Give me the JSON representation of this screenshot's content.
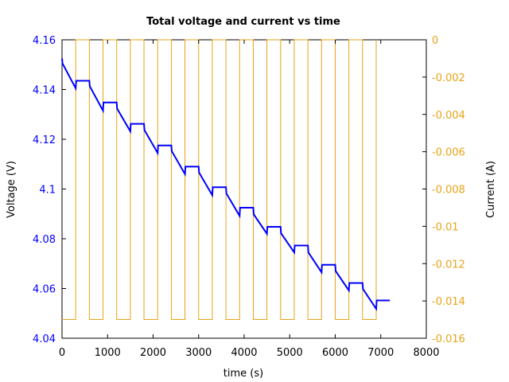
{
  "chart_data": {
    "type": "line",
    "title": "Total voltage and current vs time",
    "xlabel": "time (s)",
    "ylabel": "Voltage (V)",
    "y2label": "Current (A)",
    "xlim": [
      0,
      8000
    ],
    "ylim": [
      4.04,
      4.16
    ],
    "y2lim": [
      -0.016,
      0
    ],
    "x_ticks": [
      "0",
      "1000",
      "2000",
      "3000",
      "4000",
      "5000",
      "6000",
      "7000",
      "8000"
    ],
    "y_ticks": [
      "4.04",
      "4.06",
      "4.08",
      "4.1",
      "4.12",
      "4.14",
      "4.16"
    ],
    "y2_ticks": [
      "-0.016",
      "-0.014",
      "-0.012",
      "-0.01",
      "-0.008",
      "-0.006",
      "-0.004",
      "-0.002",
      "0"
    ],
    "grid": false,
    "series": [
      {
        "axis": "left",
        "color": "#0000ff",
        "x": [
          0,
          10,
          300,
          310,
          600,
          610,
          900,
          910,
          1200,
          1210,
          1500,
          1510,
          1800,
          1810,
          2100,
          2110,
          2400,
          2410,
          2700,
          2710,
          3000,
          3010,
          3300,
          3310,
          3600,
          3610,
          3900,
          3910,
          4200,
          4210,
          4500,
          4510,
          4800,
          4810,
          5100,
          5110,
          5400,
          5410,
          5700,
          5710,
          6000,
          6010,
          6300,
          6310,
          6600,
          6610,
          6900,
          6910,
          7200
        ],
        "y": [
          4.1525,
          4.1505,
          4.1405,
          4.1435,
          4.1435,
          4.1413,
          4.1315,
          4.1348,
          4.1348,
          4.1323,
          4.1232,
          4.1262,
          4.1262,
          4.1237,
          4.1145,
          4.1175,
          4.1175,
          4.1152,
          4.106,
          4.109,
          4.109,
          4.1066,
          4.0975,
          4.1007,
          4.1007,
          4.0982,
          4.0892,
          4.0925,
          4.0925,
          4.0898,
          4.082,
          4.0848,
          4.0848,
          4.0822,
          4.0745,
          4.0773,
          4.0773,
          4.0745,
          4.0665,
          4.0695,
          4.0695,
          4.067,
          4.0592,
          4.0622,
          4.0622,
          4.0598,
          4.0518,
          4.0552,
          4.0552
        ]
      },
      {
        "axis": "right",
        "color": "#e8a317",
        "x": [
          0,
          300,
          300,
          600,
          600,
          900,
          900,
          1200,
          1200,
          1500,
          1500,
          1800,
          1800,
          2100,
          2100,
          2400,
          2400,
          2700,
          2700,
          3000,
          3000,
          3300,
          3300,
          3600,
          3600,
          3900,
          3900,
          4200,
          4200,
          4500,
          4500,
          4800,
          4800,
          5100,
          5100,
          5400,
          5400,
          5700,
          5700,
          6000,
          6000,
          6300,
          6300,
          6600,
          6600,
          6900,
          6900
        ],
        "y": [
          -0.015,
          -0.015,
          0,
          0,
          -0.015,
          -0.015,
          0,
          0,
          -0.015,
          -0.015,
          0,
          0,
          -0.015,
          -0.015,
          0,
          0,
          -0.015,
          -0.015,
          0,
          0,
          -0.015,
          -0.015,
          0,
          0,
          -0.015,
          -0.015,
          0,
          0,
          -0.015,
          -0.015,
          0,
          0,
          -0.015,
          -0.015,
          0,
          0,
          -0.015,
          -0.015,
          0,
          0,
          -0.015,
          -0.015,
          0,
          0,
          -0.015,
          -0.015,
          0
        ]
      }
    ]
  },
  "colors": {
    "left_axis": "#0000ff",
    "right_axis": "#e8a317",
    "frame": "#000000"
  }
}
